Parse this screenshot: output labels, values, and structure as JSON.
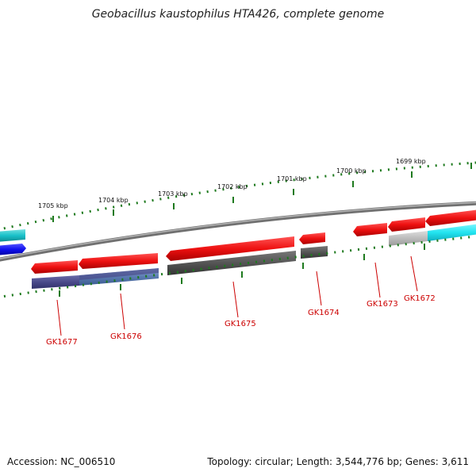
{
  "title": "Geobacillus kaustophilus HTA426, complete genome",
  "accession_text": "Accession: NC_006510",
  "topology_text": "Topology: circular; Length: 3,544,776 bp; Genes: 3,611",
  "colors": {
    "backbone": "#8a8a8a",
    "ticks": "#1e7a1e",
    "gene_red": "#ee1111",
    "gene_dark": "#555555",
    "gene_purple": "#4a4a8a",
    "gene_cyan": "#22e4f0",
    "gene_blue": "#1010ee",
    "gene_light_gray": "#bbbbbb",
    "label_red": "#cc0000"
  },
  "kbp_labels": [
    "1705 kbp",
    "1704 kbp",
    "1703 kbp",
    "1702 kbp",
    "1701 kbp",
    "1700 kbp",
    "1699 kbp"
  ],
  "gene_labels": [
    "GK1677",
    "GK1676",
    "GK1675",
    "GK1674",
    "GK1673",
    "GK1672"
  ]
}
